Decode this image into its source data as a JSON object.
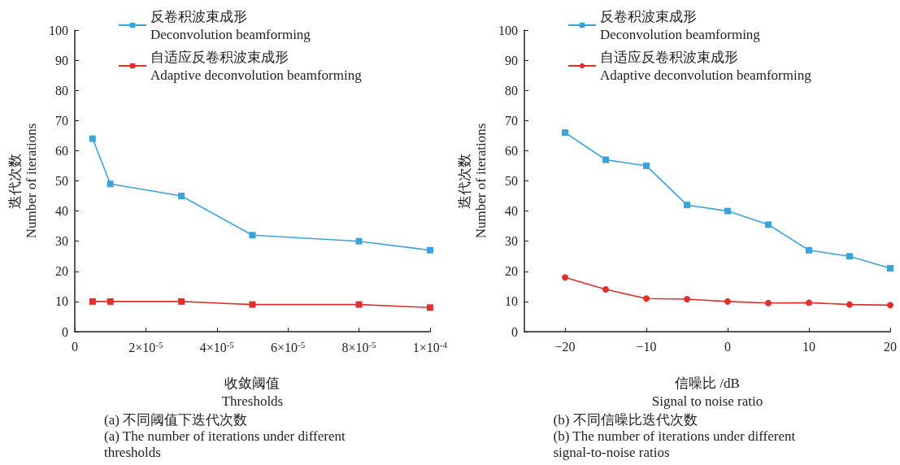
{
  "chart_data": [
    {
      "type": "line",
      "xlabel": "收敛阈值\nThresholds",
      "ylabel": "迭代次数\nNumber of iterations",
      "annotations": [
        "(a) 不同阈值下迭代次数\n(a) The number of iterations under different\nthresholds"
      ],
      "x": [
        5e-06,
        1e-05,
        3e-05,
        5e-05,
        8e-05,
        0.0001
      ],
      "series": [
        {
          "name": "反卷积波束成形\nDeconvolution beamforming",
          "color": "#3ba3dc",
          "marker": "square",
          "values": [
            64,
            49,
            45,
            32,
            30,
            27
          ]
        },
        {
          "name": "自适应反卷积波束成形\nAdaptive deconvolution beamforming",
          "color": "#e0302e",
          "marker": "square",
          "values": [
            10,
            10,
            10,
            9,
            9,
            8
          ]
        }
      ],
      "xlim": [
        0,
        0.0001
      ],
      "xticks": [
        0,
        {
          "value": 2e-05,
          "label": "2×10$^{-5}$"
        },
        {
          "value": 4e-05,
          "label": "4×10$^{-5}$"
        },
        {
          "value": 6e-05,
          "label": "6×10$^{-5}$"
        },
        {
          "value": 8e-05,
          "label": "8×10$^{-5}$"
        },
        {
          "value": 0.0001,
          "label": "1×10$^{-4}$"
        }
      ],
      "ylim": [
        0,
        100
      ],
      "yticks": [
        0,
        10,
        20,
        30,
        40,
        50,
        60,
        70,
        80,
        90,
        100
      ],
      "grid": false,
      "legend": "top left",
      "line_style": "solid"
    },
    {
      "type": "line",
      "xlabel": "信噪比 /dB\nSignal to noise ratio",
      "ylabel": "迭代次数\nNumber of iterations",
      "annotations": [
        "(b) 不同信噪比迭代次数\n(b) The number of iterations under different\nsignal-to-noise ratios"
      ],
      "x": [
        -20,
        -15,
        -10,
        -5,
        0,
        5,
        10,
        15,
        20
      ],
      "series": [
        {
          "name": "反卷积波束成形\nDeconvolution beamforming",
          "color": "#3ba3dc",
          "marker": "square",
          "values": [
            66,
            57,
            55,
            42,
            40,
            35.5,
            27,
            25,
            21
          ]
        },
        {
          "name": "自适应反卷积波束成形\nAdaptive deconvolution beamforming",
          "color": "#e0302e",
          "marker": "circle",
          "values": [
            18,
            14,
            11,
            10.8,
            10,
            9.5,
            9.6,
            9,
            8.8
          ]
        }
      ],
      "xlim": [
        -25,
        20
      ],
      "xticks": [
        {
          "value": -20,
          "label": "−20"
        },
        {
          "value": -10,
          "label": "−10"
        },
        0,
        10,
        20
      ],
      "ylim": [
        0,
        100
      ],
      "yticks": [
        0,
        10,
        20,
        30,
        40,
        50,
        60,
        70,
        80,
        90,
        100
      ],
      "grid": false,
      "legend": "top left",
      "line_style": "solid"
    }
  ]
}
